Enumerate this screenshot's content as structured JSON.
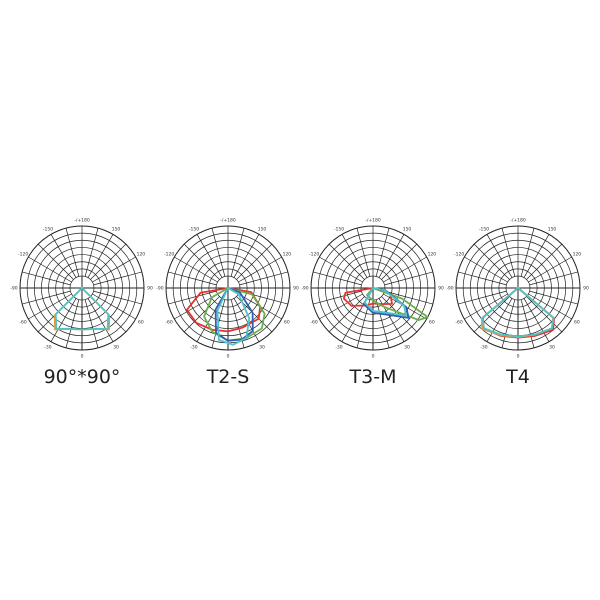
{
  "angle_labels": [
    "-/+180",
    "-150",
    "150",
    "-120",
    "120",
    "-90",
    "90",
    "-60",
    "60",
    "-30",
    "30",
    "0"
  ],
  "chart_data": [
    {
      "type": "polar-line",
      "title": "90°*90°",
      "angle_convention": "0 at bottom, 90 right, -90 left, ±180 top",
      "radial_scale": "relative intensity 0-1",
      "series": [
        {
          "color": "#e0a040",
          "points": [
            [
              -90,
              0
            ],
            [
              -45,
              0.62
            ],
            [
              -33,
              0.8
            ],
            [
              -20,
              0.7
            ],
            [
              0,
              0.67
            ],
            [
              20,
              0.7
            ],
            [
              33,
              0.8
            ],
            [
              45,
              0.62
            ],
            [
              90,
              0
            ]
          ]
        },
        {
          "color": "#4fc3c8",
          "points": [
            [
              -90,
              0
            ],
            [
              -45,
              0.6
            ],
            [
              -32,
              0.78
            ],
            [
              -20,
              0.7
            ],
            [
              0,
              0.67
            ],
            [
              20,
              0.7
            ],
            [
              32,
              0.78
            ],
            [
              45,
              0.6
            ],
            [
              90,
              0
            ]
          ]
        }
      ]
    },
    {
      "type": "polar-line",
      "title": "T2-S",
      "angle_convention": "0 at bottom, 90 right, -90 left, ±180 top",
      "radial_scale": "relative intensity 0-1",
      "series": [
        {
          "color": "#e8312f",
          "points": [
            [
              -90,
              0
            ],
            [
              -80,
              0.45
            ],
            [
              -62,
              0.75
            ],
            [
              -42,
              0.76
            ],
            [
              -20,
              0.72
            ],
            [
              0,
              0.7
            ],
            [
              20,
              0.68
            ],
            [
              45,
              0.7
            ],
            [
              60,
              0.6
            ],
            [
              80,
              0.38
            ],
            [
              90,
              0
            ]
          ]
        },
        {
          "color": "#6ab04c",
          "points": [
            [
              -90,
              0
            ],
            [
              -60,
              0.3
            ],
            [
              -40,
              0.6
            ],
            [
              -20,
              0.75
            ],
            [
              0,
              0.85
            ],
            [
              20,
              0.86
            ],
            [
              40,
              0.85
            ],
            [
              55,
              0.72
            ],
            [
              75,
              0.4
            ],
            [
              90,
              0
            ]
          ]
        },
        {
          "color": "#2d5fb8",
          "points": [
            [
              -90,
              0
            ],
            [
              -30,
              0.4
            ],
            [
              -15,
              0.75
            ],
            [
              0,
              0.85
            ],
            [
              15,
              0.86
            ],
            [
              30,
              0.8
            ],
            [
              45,
              0.56
            ],
            [
              70,
              0.2
            ],
            [
              90,
              0
            ]
          ]
        },
        {
          "color": "#4fc3c8",
          "points": [
            [
              -90,
              0
            ],
            [
              -25,
              0.4
            ],
            [
              -10,
              0.85
            ],
            [
              5,
              0.92
            ],
            [
              20,
              0.86
            ],
            [
              35,
              0.6
            ],
            [
              60,
              0.2
            ],
            [
              90,
              0
            ]
          ]
        }
      ]
    },
    {
      "type": "polar-line",
      "title": "T3-M",
      "angle_convention": "0 at bottom, 90 right, -90 left, ±180 top",
      "radial_scale": "relative intensity 0-1",
      "series": [
        {
          "color": "#e8312f",
          "points": [
            [
              -90,
              0
            ],
            [
              -80,
              0.45
            ],
            [
              -70,
              0.5
            ],
            [
              -50,
              0.45
            ],
            [
              -20,
              0.3
            ],
            [
              0,
              0.25
            ],
            [
              30,
              0.3
            ],
            [
              50,
              0.4
            ],
            [
              70,
              0.3
            ],
            [
              90,
              0
            ]
          ]
        },
        {
          "color": "#6ab04c",
          "points": [
            [
              -90,
              0
            ],
            [
              -40,
              0.15
            ],
            [
              0,
              0.2
            ],
            [
              30,
              0.35
            ],
            [
              55,
              0.9
            ],
            [
              62,
              1.0
            ],
            [
              70,
              0.5
            ],
            [
              90,
              0
            ]
          ]
        },
        {
          "color": "#2d5fb8",
          "points": [
            [
              -90,
              0
            ],
            [
              -30,
              0.3
            ],
            [
              0,
              0.4
            ],
            [
              30,
              0.5
            ],
            [
              50,
              0.75
            ],
            [
              60,
              0.62
            ],
            [
              80,
              0.2
            ],
            [
              90,
              0
            ]
          ]
        },
        {
          "color": "#4fc3c8",
          "points": [
            [
              -90,
              0
            ],
            [
              -30,
              0.27
            ],
            [
              0,
              0.37
            ],
            [
              30,
              0.46
            ],
            [
              50,
              0.7
            ],
            [
              60,
              0.58
            ],
            [
              80,
              0.18
            ],
            [
              90,
              0
            ]
          ]
        }
      ]
    },
    {
      "type": "polar-line",
      "title": "T4",
      "angle_convention": "0 at bottom, 90 right, -90 left, ±180 top",
      "radial_scale": "relative intensity 0-1",
      "series": [
        {
          "color": "#e8312f",
          "points": [
            [
              -90,
              0
            ],
            [
              -50,
              0.74
            ],
            [
              -40,
              0.86
            ],
            [
              -20,
              0.82
            ],
            [
              0,
              0.8
            ],
            [
              20,
              0.82
            ],
            [
              40,
              0.88
            ],
            [
              50,
              0.76
            ],
            [
              90,
              0
            ]
          ]
        },
        {
          "color": "#e0a040",
          "points": [
            [
              -90,
              0
            ],
            [
              -50,
              0.76
            ],
            [
              -41,
              0.88
            ],
            [
              -20,
              0.81
            ],
            [
              0,
              0.79
            ],
            [
              20,
              0.8
            ],
            [
              40,
              0.85
            ],
            [
              50,
              0.74
            ],
            [
              90,
              0
            ]
          ]
        },
        {
          "color": "#4fc3c8",
          "points": [
            [
              -90,
              0
            ],
            [
              -50,
              0.75
            ],
            [
              -40,
              0.85
            ],
            [
              -20,
              0.8
            ],
            [
              0,
              0.78
            ],
            [
              20,
              0.8
            ],
            [
              40,
              0.85
            ],
            [
              50,
              0.75
            ],
            [
              90,
              0
            ]
          ]
        }
      ]
    }
  ]
}
